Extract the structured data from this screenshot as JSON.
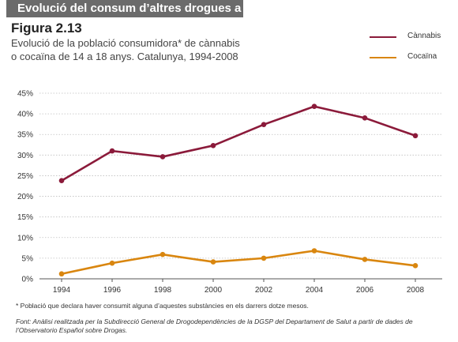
{
  "banner": {
    "title": "Evolució del consum d’altres drogues a l’adolescència"
  },
  "figure": {
    "number": "Figura 2.13",
    "subtitle_line1": "Evolució de la població consumidora* de cànnabis",
    "subtitle_line2": "o cocaïna de 14 a 18 anys. Catalunya, 1994-2008"
  },
  "colors": {
    "cannabis": "#8b1a3a",
    "cocaina": "#d9860f",
    "grid": "#bfbfbf",
    "banner": "#6b6b6b"
  },
  "chart_data": {
    "type": "line",
    "title": "Evolució de la població consumidora* de cànnabis o cocaïna de 14 a 18 anys. Catalunya, 1994-2008",
    "categories": [
      "1994",
      "1996",
      "1998",
      "2000",
      "2002",
      "2004",
      "2006",
      "2008"
    ],
    "x_tick_labels": [
      "1994",
      "1996",
      "1998",
      "2000",
      "2002",
      "2004",
      "2006",
      "2008"
    ],
    "y_tick_labels": [
      "0%",
      "5%",
      "10%",
      "15%",
      "20%",
      "25%",
      "30%",
      "35%",
      "40%",
      "45%"
    ],
    "ylim": [
      0,
      45
    ],
    "xlabel": "",
    "ylabel": "",
    "grid": true,
    "legend_position": "top-right",
    "series": [
      {
        "name": "Cànnabis",
        "color": "#8b1a3a",
        "values": [
          23.8,
          31.0,
          29.6,
          32.3,
          37.4,
          41.8,
          39.0,
          34.7
        ]
      },
      {
        "name": "Cocaïna",
        "color": "#d9860f",
        "values": [
          1.2,
          3.8,
          5.9,
          4.1,
          5.0,
          6.8,
          4.7,
          3.2
        ]
      }
    ]
  },
  "footnote": "* Població que declara haver consumit alguna d’aquestes substàncies en els darrers dotze mesos.",
  "source": "Font: Anàlisi realitzada per la Subdirecció General de Drogodependències de la DGSP del Departament de Salut a partir de dades de l’Observatorio Español sobre Drogas."
}
